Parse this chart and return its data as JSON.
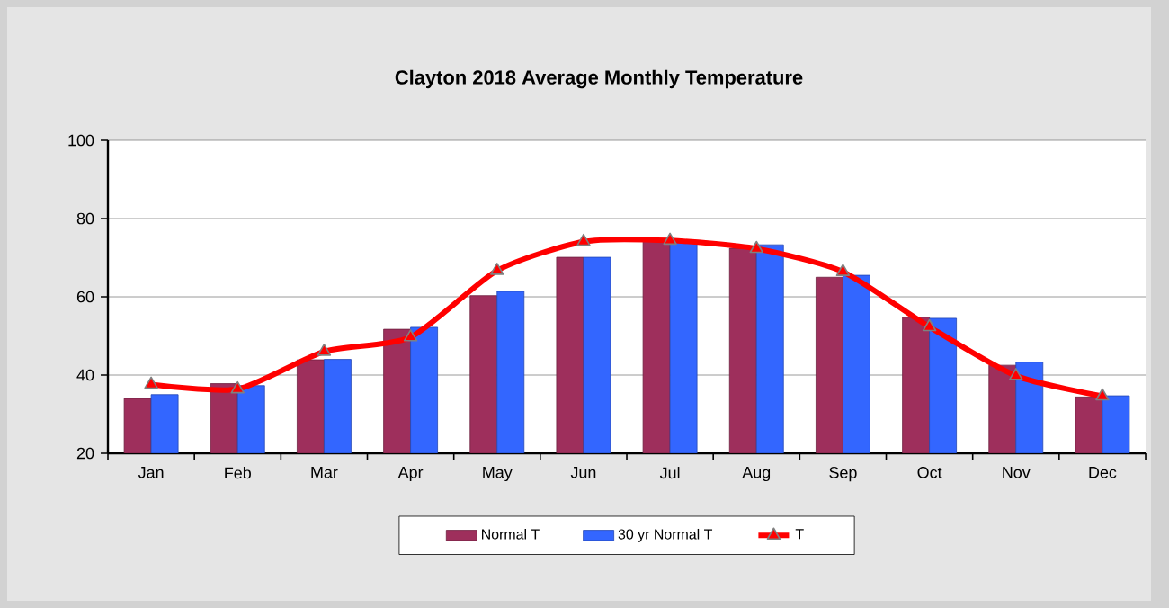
{
  "chart_data": {
    "type": "bar",
    "title": "Clayton 2018 Average Monthly Temperature",
    "categories": [
      "Jan",
      "Feb",
      "Mar",
      "Apr",
      "May",
      "Jun",
      "Jul",
      "Aug",
      "Sep",
      "Oct",
      "Nov",
      "Dec"
    ],
    "series": [
      {
        "name": "Normal T",
        "color": "#9e2f5c",
        "values": [
          34,
          37.8,
          43.9,
          51.7,
          60.3,
          70.1,
          74.5,
          72.4,
          65,
          54.8,
          42.5,
          34.4
        ]
      },
      {
        "name": "30 yr Normal T",
        "color": "#3366ff",
        "values": [
          35,
          37.3,
          44,
          52.2,
          61.4,
          70.1,
          74.3,
          73.3,
          65.5,
          54.5,
          43.3,
          34.7
        ]
      },
      {
        "name": "T",
        "type": "line",
        "color": "#ff0000",
        "marker": "triangle",
        "values": [
          37.6,
          36.4,
          46,
          49.7,
          66.7,
          74.1,
          74.4,
          72.3,
          66.4,
          52.3,
          39.8,
          34.6
        ]
      }
    ],
    "ylim": [
      20,
      100
    ],
    "yticks": [
      20,
      40,
      60,
      80,
      100
    ],
    "grid": "y",
    "legend": "bottom"
  }
}
